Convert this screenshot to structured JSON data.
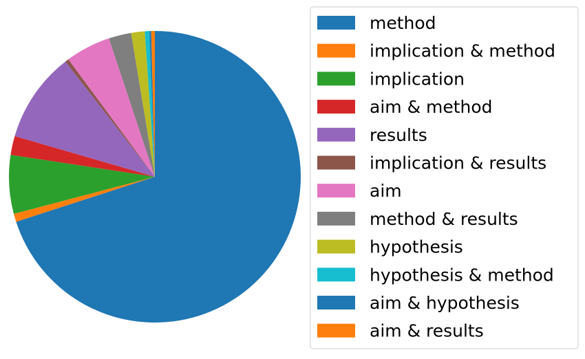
{
  "chart_data": {
    "type": "pie",
    "title": "",
    "start_angle_deg": 90,
    "direction": "clockwise",
    "legend_position": "right",
    "slices": [
      {
        "label": "method",
        "value": 70.0,
        "color": "#1f77b4"
      },
      {
        "label": "implication & method",
        "value": 0.9,
        "color": "#ff7f0e"
      },
      {
        "label": "implication",
        "value": 6.5,
        "color": "#2ca02c"
      },
      {
        "label": "aim & method",
        "value": 2.1,
        "color": "#d62728"
      },
      {
        "label": "results",
        "value": 10.0,
        "color": "#9467bd"
      },
      {
        "label": "implication & results",
        "value": 0.4,
        "color": "#8c564b"
      },
      {
        "label": "aim",
        "value": 5.0,
        "color": "#e377c2"
      },
      {
        "label": "method & results",
        "value": 2.5,
        "color": "#7f7f7f"
      },
      {
        "label": "hypothesis",
        "value": 1.5,
        "color": "#bcbd22"
      },
      {
        "label": "hypothesis & method",
        "value": 0.5,
        "color": "#17becf"
      },
      {
        "label": "aim & hypothesis",
        "value": 0.2,
        "color": "#1f77b4"
      },
      {
        "label": "aim & results",
        "value": 0.4,
        "color": "#ff7f0e"
      }
    ]
  }
}
